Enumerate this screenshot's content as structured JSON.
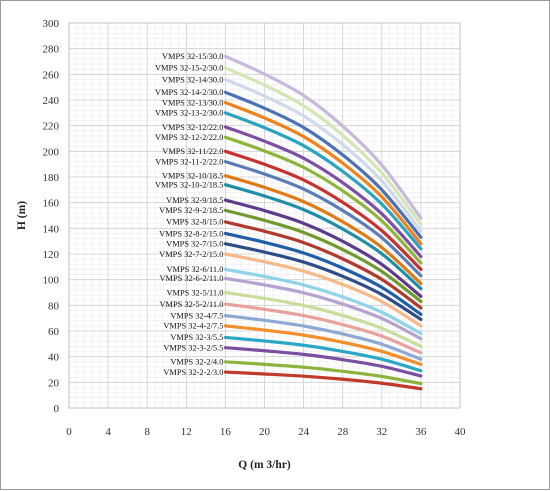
{
  "chart_data": {
    "type": "line",
    "title": "",
    "xlabel": "Q (m 3/hr)",
    "ylabel": "H (m)",
    "xlim": [
      0,
      40
    ],
    "ylim": [
      0,
      300
    ],
    "x_ticks": [
      0,
      4,
      8,
      12,
      16,
      20,
      24,
      28,
      32,
      36,
      40
    ],
    "y_ticks": [
      0,
      20,
      40,
      60,
      80,
      100,
      120,
      140,
      160,
      180,
      200,
      220,
      240,
      260,
      280,
      300
    ],
    "y_tick_labels": [
      "0",
      "20",
      "40",
      "60",
      "80",
      "100",
      "120",
      "140",
      "160",
      "180",
      "200",
      "220",
      "240",
      "260",
      "280",
      "300"
    ],
    "grid": "on (major and minor)",
    "legend": "labels at start of each curve",
    "x": [
      16,
      20,
      24,
      28,
      32,
      36
    ],
    "series": [
      {
        "name": "VMPS 32-2-2/3.0",
        "color": "#c0392b",
        "values": [
          28,
          26.5,
          24.8,
          22.4,
          19.3,
          15
        ]
      },
      {
        "name": "VMPS 32-2/4.0",
        "color": "#8cb43c",
        "values": [
          36,
          34,
          31.8,
          28.6,
          24.6,
          19
        ]
      },
      {
        "name": "VMPS 32-3-2/5.5",
        "color": "#7a4fa0",
        "values": [
          47,
          44.6,
          41.8,
          37.7,
          32.5,
          25
        ]
      },
      {
        "name": "VMPS 32-3/5.5",
        "color": "#2aa6c6",
        "values": [
          55,
          52.2,
          48.9,
          44.1,
          38,
          29
        ]
      },
      {
        "name": "VMPS 32-4-2/7.5",
        "color": "#f28e2b",
        "values": [
          64,
          60.7,
          56.8,
          51.2,
          44.1,
          34
        ]
      },
      {
        "name": "VMPS 32-4/7.5",
        "color": "#8ea8d6",
        "values": [
          72,
          68.3,
          63.9,
          57.7,
          49.7,
          38
        ]
      },
      {
        "name": "VMPS 32-5-2/11.0",
        "color": "#e8a19c",
        "values": [
          81,
          76.9,
          72,
          65,
          56,
          43
        ]
      },
      {
        "name": "VMPS 32-5/11.0",
        "color": "#c9dd9a",
        "values": [
          90,
          85.4,
          79.9,
          72.1,
          62.1,
          48
        ]
      },
      {
        "name": "VMPS 32-6-2/11.0",
        "color": "#b6a2ce",
        "values": [
          101,
          95.9,
          89.8,
          81,
          69.8,
          54
        ]
      },
      {
        "name": "VMPS 32-6/11.0",
        "color": "#8fd3e8",
        "values": [
          108,
          102.5,
          95.9,
          86.6,
          74.6,
          58
        ]
      },
      {
        "name": "VMPS 32-7-2/15.0",
        "color": "#f7b98a",
        "values": [
          120,
          113.9,
          106.6,
          96.2,
          82.9,
          64
        ]
      },
      {
        "name": "VMPS 32-7/15.0",
        "color": "#2e4d86",
        "values": [
          128,
          121.5,
          113.7,
          102.6,
          88.4,
          69
        ]
      },
      {
        "name": "VMPS 32-8-2/15.0",
        "color": "#1f5fa8",
        "values": [
          136,
          129.1,
          120.8,
          109,
          94,
          73
        ]
      },
      {
        "name": "VMPS 32-8/15.0",
        "color": "#b03a2e",
        "values": [
          145,
          137.7,
          128.9,
          116.2,
          100.2,
          78
        ]
      },
      {
        "name": "VMPS 32-9-2/18.5",
        "color": "#6e9a2e",
        "values": [
          154,
          146.2,
          136.8,
          123.5,
          106.4,
          83
        ]
      },
      {
        "name": "VMPS 32-9/18.5",
        "color": "#5d3b8a",
        "values": [
          162,
          153.8,
          143.9,
          129.9,
          111.9,
          87
        ]
      },
      {
        "name": "VMPS 32-10-2/18.5",
        "color": "#1f8fa8",
        "values": [
          174,
          165.2,
          154.6,
          139.5,
          120.2,
          93
        ]
      },
      {
        "name": "VMPS 32-10/18.5",
        "color": "#e07a14",
        "values": [
          181,
          171.9,
          160.8,
          145.1,
          125.1,
          97
        ]
      },
      {
        "name": "VMPS 32-11-2/22.0",
        "color": "#5a7db8",
        "values": [
          192,
          182.3,
          170.6,
          153.9,
          132.7,
          103
        ]
      },
      {
        "name": "VMPS 32-11/22.0",
        "color": "#c8322c",
        "values": [
          200,
          189.9,
          177.7,
          160.3,
          138.2,
          108
        ]
      },
      {
        "name": "VMPS 32-12-2/22.0",
        "color": "#8db53a",
        "values": [
          211,
          200.3,
          187.5,
          169.2,
          145.8,
          113
        ]
      },
      {
        "name": "VMPS 32-12/22.0",
        "color": "#7d4ea3",
        "values": [
          219,
          207.9,
          194.6,
          175.6,
          151.3,
          118
        ]
      },
      {
        "name": "VMPS 32-13-2/30.0",
        "color": "#2aa3c2",
        "values": [
          230,
          218.4,
          204.4,
          184.4,
          158.9,
          124
        ]
      },
      {
        "name": "VMPS 32-13/30.0",
        "color": "#f0821e",
        "values": [
          238,
          226,
          211.5,
          190.8,
          164.5,
          128
        ]
      },
      {
        "name": "VMPS 32-14-2/30.0",
        "color": "#4a72b5",
        "values": [
          246,
          233.6,
          218.6,
          197.2,
          170,
          133
        ]
      },
      {
        "name": "VMPS 32-14/30.0",
        "color": "#cfd9ec",
        "values": [
          256,
          243.1,
          227.5,
          205.2,
          176.9,
          138
        ]
      },
      {
        "name": "VMPS 32-15-2/30.0",
        "color": "#d4e6b5",
        "values": [
          265,
          251.6,
          235.5,
          212.5,
          183.1,
          143
        ]
      },
      {
        "name": "VMPS 32-15/30.0",
        "color": "#c9b8dc",
        "values": [
          274,
          260.2,
          243.5,
          219.7,
          189.3,
          148
        ]
      }
    ]
  }
}
